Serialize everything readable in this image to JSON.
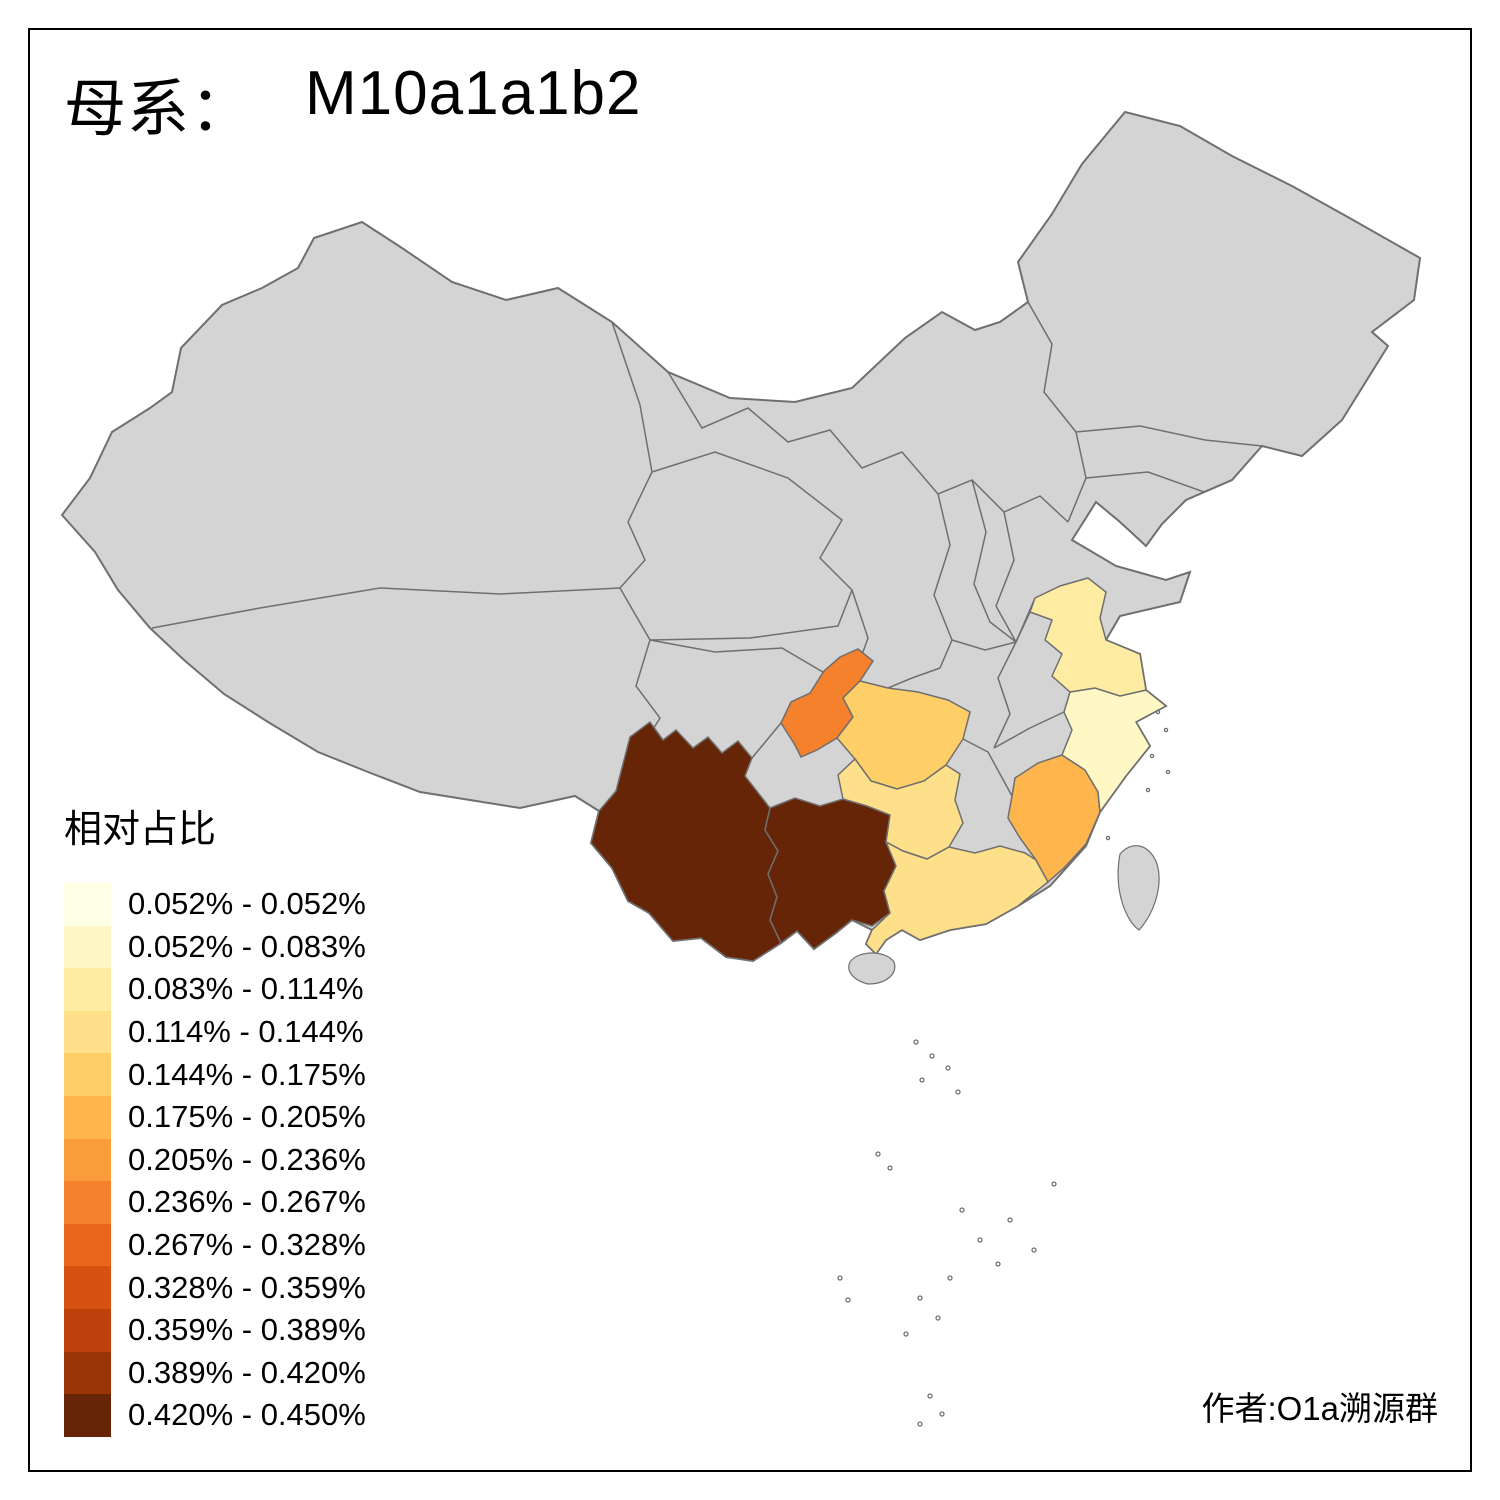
{
  "title": {
    "prefix": "母系：",
    "haplogroup": "M10a1a1b2"
  },
  "legend": {
    "title": "相对占比",
    "entries": [
      {
        "label": "0.052% - 0.052%",
        "color": "#FFFFE5"
      },
      {
        "label": "0.052% - 0.083%",
        "color": "#FFF8C4"
      },
      {
        "label": "0.083% - 0.114%",
        "color": "#FEECA2"
      },
      {
        "label": "0.114% - 0.144%",
        "color": "#FEE08A"
      },
      {
        "label": "0.144% - 0.175%",
        "color": "#FECF66"
      },
      {
        "label": "0.175% - 0.205%",
        "color": "#FEB54E"
      },
      {
        "label": "0.205% - 0.236%",
        "color": "#FB9C3C"
      },
      {
        "label": "0.236% - 0.267%",
        "color": "#F5812C"
      },
      {
        "label": "0.267% - 0.328%",
        "color": "#E8671D"
      },
      {
        "label": "0.328% - 0.359%",
        "color": "#D75212"
      },
      {
        "label": "0.359% - 0.389%",
        "color": "#BC410A"
      },
      {
        "label": "0.389% - 0.420%",
        "color": "#9A3404"
      },
      {
        "label": "0.420% - 0.450%",
        "color": "#662506"
      }
    ]
  },
  "attribution": "作者:O1a溯源群",
  "map": {
    "base_fill": "#D4D4D4",
    "border_color": "#6F6F6F",
    "background": "#FFFFFF"
  },
  "regions": {
    "yunnan": {
      "name": "Yunnan",
      "range": "0.420% - 0.450%",
      "color": "#662506"
    },
    "guangxi": {
      "name": "Guangxi",
      "range": "0.420% - 0.450%",
      "color": "#662506"
    },
    "chongqing": {
      "name": "Chongqing",
      "range": "0.236% - 0.267%",
      "color": "#F5812C"
    },
    "fujian": {
      "name": "Fujian",
      "range": "0.175% - 0.205%",
      "color": "#FEB54E"
    },
    "hubei": {
      "name": "Hubei",
      "range": "0.144% - 0.175%",
      "color": "#FECF66"
    },
    "hunan": {
      "name": "Hunan",
      "range": "0.114% - 0.144%",
      "color": "#FEE08A"
    },
    "guangdong": {
      "name": "Guangdong",
      "range": "0.114% - 0.144%",
      "color": "#FEE08A"
    },
    "jiangsu": {
      "name": "Jiangsu",
      "range": "0.083% - 0.114%",
      "color": "#FEECA2"
    },
    "zhejiang": {
      "name": "Zhejiang",
      "range": "0.052% - 0.083%",
      "color": "#FFF8C4"
    }
  }
}
